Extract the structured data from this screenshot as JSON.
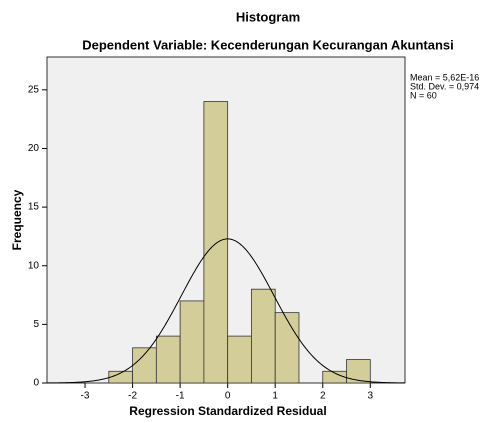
{
  "chart_data": {
    "type": "histogram",
    "title": "Histogram",
    "subtitle": "Dependent Variable: Kecenderungan Kecurangan Akuntansi",
    "x_label": "Regression Standardized Residual",
    "y_label": "Frequency",
    "bins": [
      -2.5,
      -2.0,
      -1.5,
      -1.0,
      -0.5,
      0.0,
      0.5,
      1.0,
      1.5,
      2.0,
      2.5,
      3.0
    ],
    "values": [
      1,
      3,
      4,
      7,
      24,
      4,
      8,
      6,
      0,
      1,
      2
    ],
    "color": "#d3ce99",
    "curve_color": "#000000",
    "xlim": [
      -3.8,
      3.73
    ],
    "ylim": [
      0,
      27.8
    ],
    "xticks": [
      -3,
      -2,
      -1,
      0,
      1,
      2,
      3
    ],
    "yticks": [
      0,
      5,
      10,
      15,
      20,
      25
    ],
    "stats": [
      {
        "name": "Mean",
        "value": 5.62e-16,
        "label": "Mean = 5,62E-16"
      },
      {
        "name": "Std. Dev.",
        "value": 0.974,
        "label": "Std. Dev. = 0,974"
      },
      {
        "name": "N",
        "value": 60,
        "label": "N = 60"
      }
    ]
  }
}
